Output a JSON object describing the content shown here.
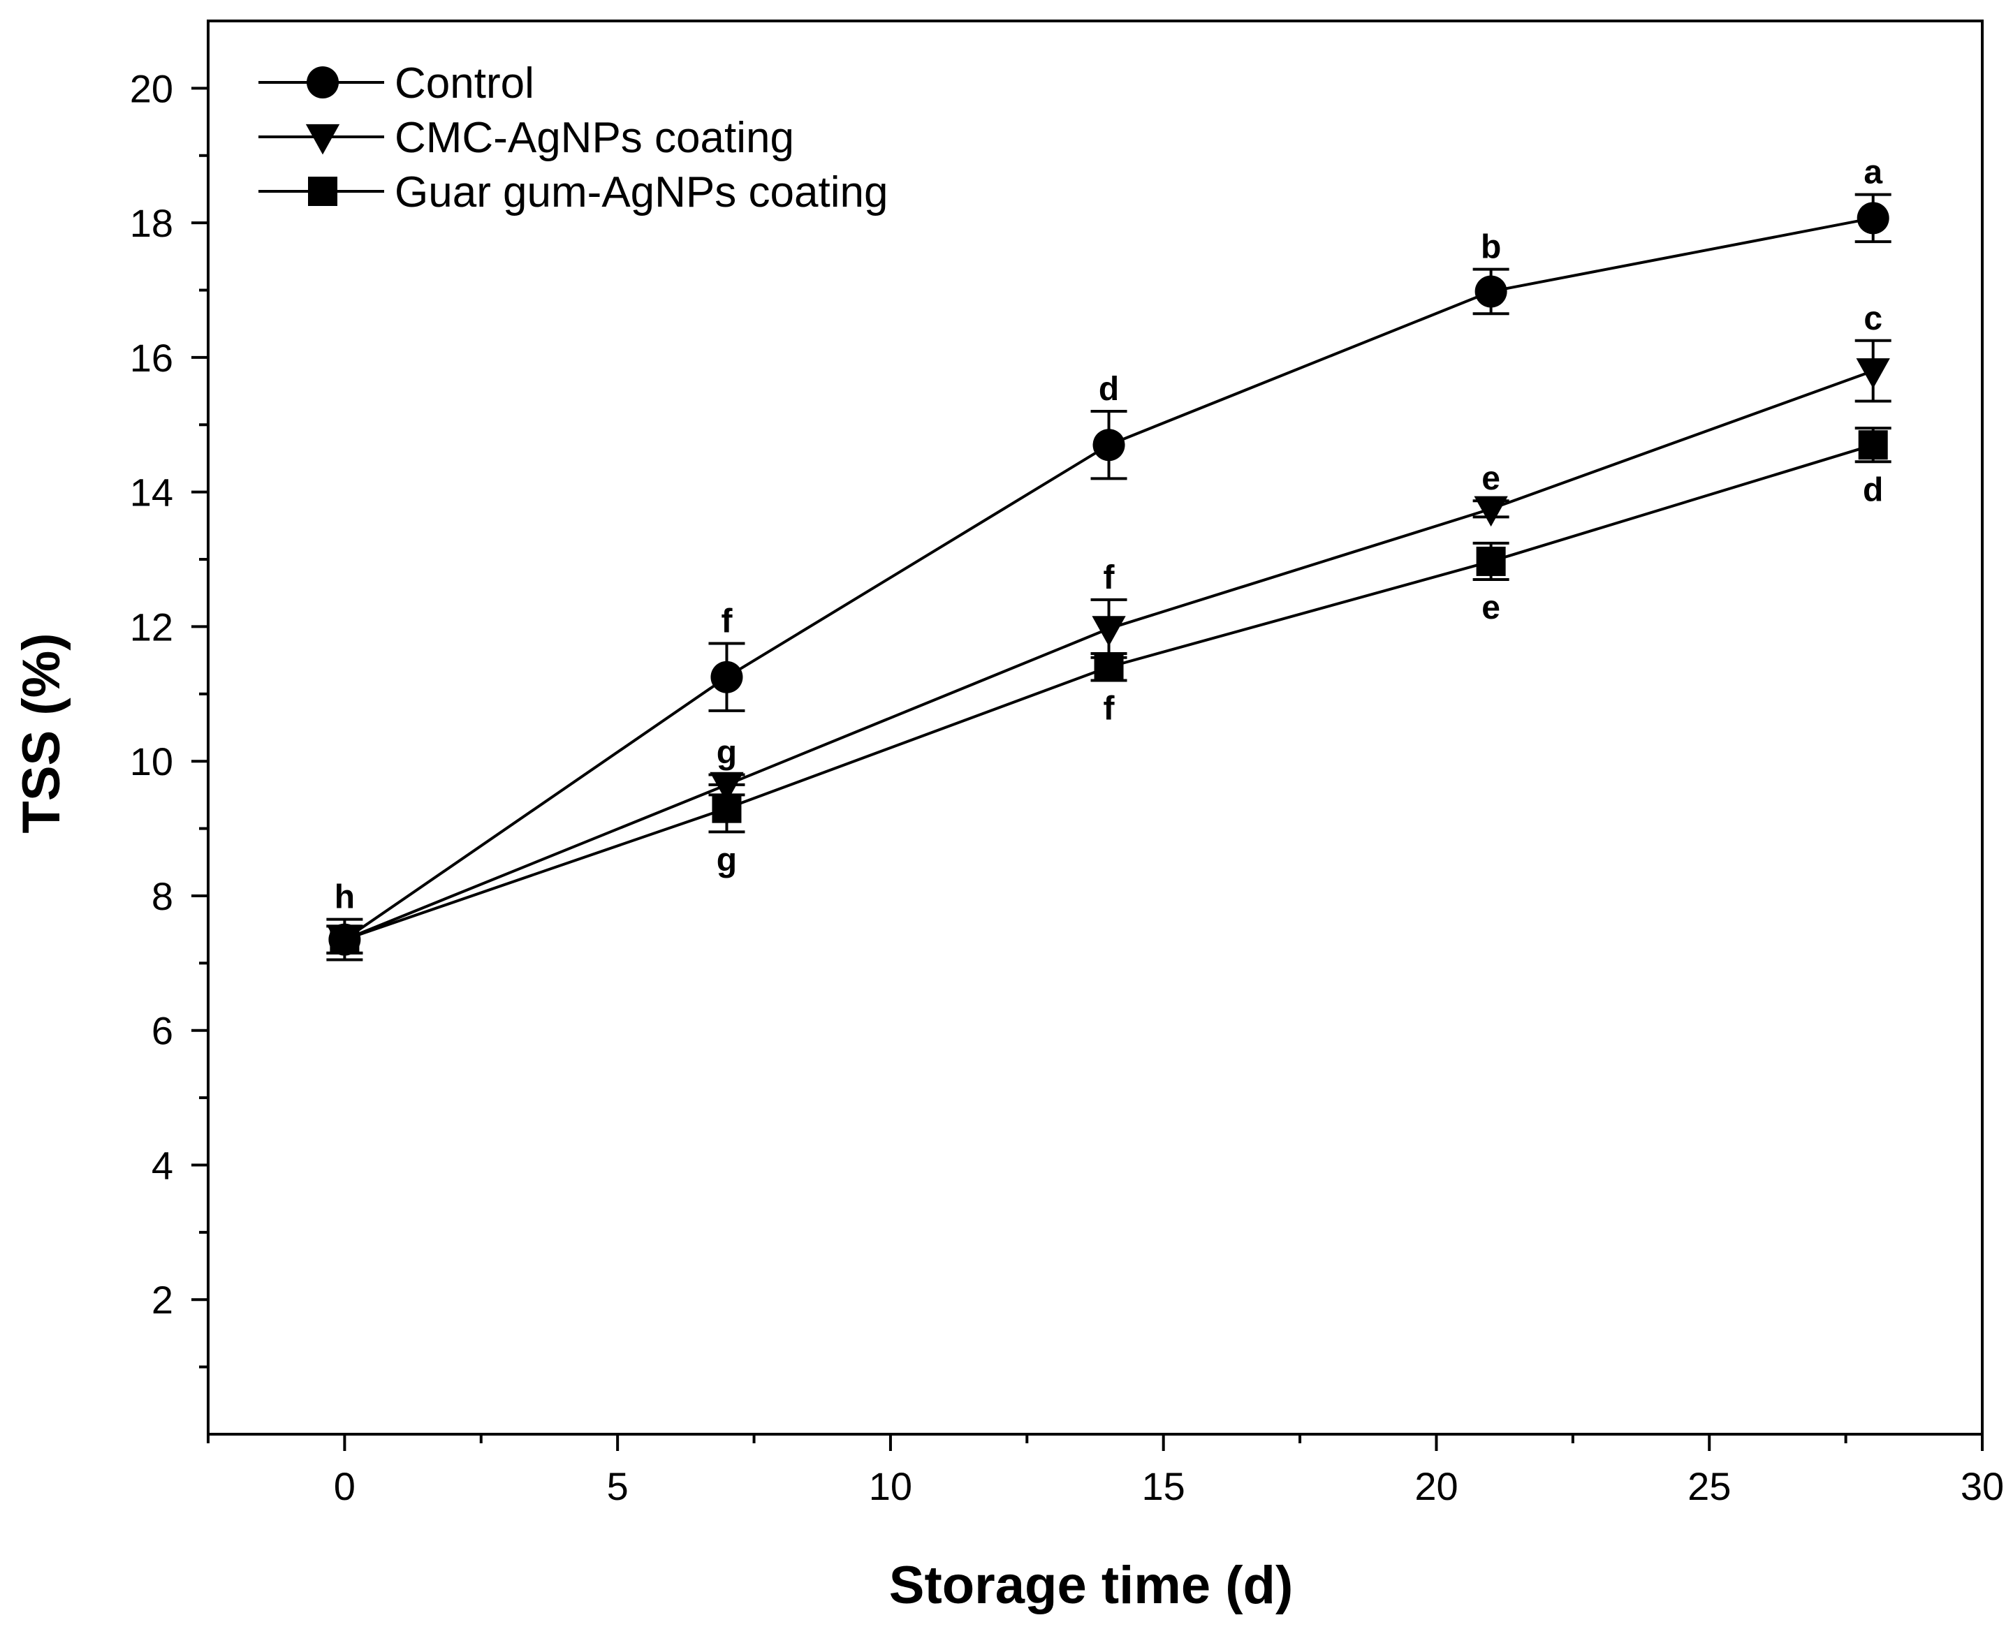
{
  "chart_data": {
    "type": "line",
    "title": "",
    "xlabel": "Storage time (d)",
    "ylabel": "TSS (%)",
    "xlim": [
      -2.5,
      30
    ],
    "ylim": [
      0,
      21
    ],
    "x_ticks": [
      0,
      5,
      10,
      15,
      20,
      25,
      30
    ],
    "y_ticks": [
      2,
      4,
      6,
      8,
      10,
      12,
      14,
      16,
      18,
      20
    ],
    "grid": false,
    "legend_position": "top-left",
    "x": [
      0,
      7,
      14,
      21,
      28
    ],
    "series": [
      {
        "name": "Control",
        "marker": "circle",
        "values": [
          7.35,
          11.25,
          14.7,
          16.98,
          18.07
        ],
        "errors": [
          0.3,
          0.5,
          0.5,
          0.33,
          0.35
        ],
        "labels": [
          "h",
          "f",
          "d",
          "b",
          "a"
        ],
        "label_positions": [
          "above",
          "above",
          "above",
          "above",
          "above"
        ]
      },
      {
        "name": "CMC-AgNPs coating",
        "marker": "triangle-down",
        "values": [
          7.35,
          9.65,
          11.97,
          13.75,
          15.8
        ],
        "errors": [
          0.2,
          0.15,
          0.43,
          0.12,
          0.45
        ],
        "labels": [
          "",
          "g",
          "f",
          "e",
          "c"
        ],
        "label_positions": [
          "above",
          "above",
          "above",
          "above",
          "above"
        ]
      },
      {
        "name": "Guar gum-AgNPs coating",
        "marker": "square",
        "values": [
          7.35,
          9.3,
          11.4,
          12.97,
          14.7
        ],
        "errors": [
          0.2,
          0.35,
          0.2,
          0.27,
          0.25
        ],
        "labels": [
          "",
          "g",
          "f",
          "e",
          "d"
        ],
        "label_positions": [
          "below",
          "below",
          "below",
          "below",
          "below"
        ]
      }
    ]
  }
}
